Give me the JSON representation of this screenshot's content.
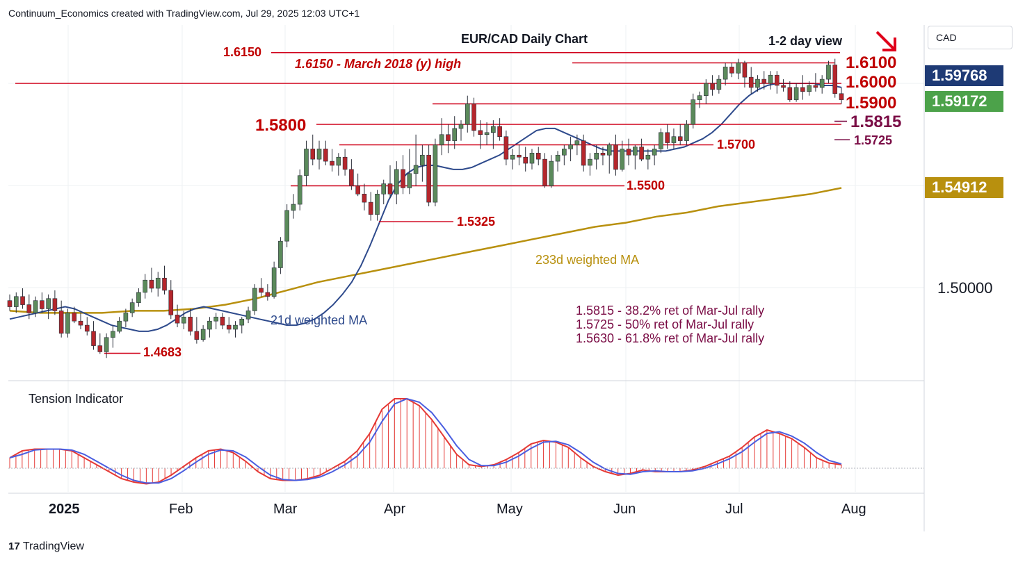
{
  "header": {
    "source_text": "Continuum_Economics created with TradingView.com, Jul 29, 2025 12:03 UTC+1"
  },
  "chart_title": "EUR/CAD Daily Chart",
  "view_label": "1-2 day view",
  "view_arrow_icon": "down-right-arrow-icon",
  "currency_label": "CAD",
  "price_boxes": [
    {
      "value": "1.59768",
      "color": "#1e3a75"
    },
    {
      "value": "1.59172",
      "color": "#4ca24a"
    },
    {
      "value": "1.54912",
      "color": "#b8900e"
    }
  ],
  "axis_label": "1.50000",
  "level_labels": {
    "l6150": "1.6150",
    "l6150_note": "1.6150 - March 2018 (y) high",
    "l6100": "1.6100",
    "l6000": "1.6000",
    "l5900": "1.5900",
    "l5815": "1.5815",
    "l5800": "1.5800",
    "l5725": "1.5725",
    "l5700": "1.5700",
    "l5500": "1.5500",
    "l5325": "1.5325",
    "l4683": "1.4683"
  },
  "ma_labels": {
    "ma233": "233d weighted MA",
    "ma21": "21d weighted MA"
  },
  "retracements": [
    "1.5815 - 38.2% ret of Mar-Jul rally",
    "1.5725 - 50% ret of Mar-Jul rally",
    "1.5630 - 61.8% ret of Mar-Jul rally"
  ],
  "indicator_title": "Tension Indicator",
  "months": [
    "2025",
    "Feb",
    "Mar",
    "Apr",
    "May",
    "Jun",
    "Jul",
    "Aug"
  ],
  "footer": {
    "logo_text": "TradingView"
  },
  "colors": {
    "up": "#5b8a5b",
    "down": "#b5262c",
    "level": "#d0021b",
    "ma21": "#2e4a8c",
    "ma233": "#b8900e",
    "tension": "#e53935",
    "tension_signal": "#4a5ee0"
  },
  "chart_data": {
    "type": "candlestick",
    "title": "EUR/CAD Daily Chart",
    "x_range": [
      "2024-12-18",
      "2025-07-29"
    ],
    "y_range": [
      1.45,
      1.625
    ],
    "x_ticks": [
      "2025",
      "Feb",
      "Mar",
      "Apr",
      "May",
      "Jun",
      "Jul",
      "Aug"
    ],
    "ohlc": [
      [
        1.494,
        1.497,
        1.489,
        1.491
      ],
      [
        1.491,
        1.498,
        1.488,
        1.496
      ],
      [
        1.496,
        1.5,
        1.49,
        1.492
      ],
      [
        1.492,
        1.497,
        1.485,
        1.488
      ],
      [
        1.488,
        1.496,
        1.486,
        1.494
      ],
      [
        1.494,
        1.498,
        1.488,
        1.49
      ],
      [
        1.49,
        1.497,
        1.485,
        1.495
      ],
      [
        1.495,
        1.499,
        1.487,
        1.489
      ],
      [
        1.489,
        1.494,
        1.476,
        1.478
      ],
      [
        1.478,
        1.49,
        1.476,
        1.488
      ],
      [
        1.488,
        1.491,
        1.483,
        1.484
      ],
      [
        1.484,
        1.488,
        1.48,
        1.482
      ],
      [
        1.482,
        1.486,
        1.477,
        1.479
      ],
      [
        1.479,
        1.484,
        1.47,
        1.472
      ],
      [
        1.472,
        1.478,
        1.468,
        1.469
      ],
      [
        1.469,
        1.478,
        1.466,
        1.476
      ],
      [
        1.476,
        1.482,
        1.471,
        1.479
      ],
      [
        1.479,
        1.486,
        1.478,
        1.484
      ],
      [
        1.484,
        1.49,
        1.481,
        1.488
      ],
      [
        1.488,
        1.495,
        1.486,
        1.493
      ],
      [
        1.493,
        1.5,
        1.491,
        1.498
      ],
      [
        1.498,
        1.507,
        1.495,
        1.504
      ],
      [
        1.504,
        1.51,
        1.498,
        1.5
      ],
      [
        1.5,
        1.508,
        1.496,
        1.505
      ],
      [
        1.505,
        1.511,
        1.497,
        1.499
      ],
      [
        1.499,
        1.504,
        1.485,
        1.487
      ],
      [
        1.487,
        1.492,
        1.481,
        1.483
      ],
      [
        1.483,
        1.489,
        1.48,
        1.486
      ],
      [
        1.486,
        1.49,
        1.477,
        1.479
      ],
      [
        1.479,
        1.486,
        1.473,
        1.475
      ],
      [
        1.475,
        1.482,
        1.474,
        1.48
      ],
      [
        1.48,
        1.486,
        1.476,
        1.484
      ],
      [
        1.484,
        1.488,
        1.48,
        1.486
      ],
      [
        1.486,
        1.488,
        1.48,
        1.482
      ],
      [
        1.482,
        1.486,
        1.478,
        1.48
      ],
      [
        1.48,
        1.484,
        1.476,
        1.482
      ],
      [
        1.482,
        1.486,
        1.478,
        1.485
      ],
      [
        1.485,
        1.491,
        1.483,
        1.489
      ],
      [
        1.489,
        1.502,
        1.487,
        1.5
      ],
      [
        1.5,
        1.505,
        1.496,
        1.498
      ],
      [
        1.498,
        1.502,
        1.494,
        1.496
      ],
      [
        1.496,
        1.513,
        1.495,
        1.51
      ],
      [
        1.51,
        1.525,
        1.507,
        1.523
      ],
      [
        1.523,
        1.541,
        1.52,
        1.538
      ],
      [
        1.538,
        1.546,
        1.534,
        1.541
      ],
      [
        1.541,
        1.558,
        1.538,
        1.555
      ],
      [
        1.555,
        1.572,
        1.55,
        1.568
      ],
      [
        1.568,
        1.575,
        1.56,
        1.563
      ],
      [
        1.563,
        1.572,
        1.558,
        1.568
      ],
      [
        1.568,
        1.572,
        1.56,
        1.562
      ],
      [
        1.562,
        1.568,
        1.557,
        1.56
      ],
      [
        1.56,
        1.566,
        1.555,
        1.564
      ],
      [
        1.564,
        1.568,
        1.555,
        1.558
      ],
      [
        1.558,
        1.563,
        1.548,
        1.55
      ],
      [
        1.55,
        1.556,
        1.545,
        1.546
      ],
      [
        1.546,
        1.551,
        1.538,
        1.542
      ],
      [
        1.542,
        1.547,
        1.533,
        1.536
      ],
      [
        1.536,
        1.548,
        1.533,
        1.546
      ],
      [
        1.546,
        1.553,
        1.541,
        1.551
      ],
      [
        1.551,
        1.56,
        1.544,
        1.546
      ],
      [
        1.546,
        1.562,
        1.541,
        1.558
      ],
      [
        1.558,
        1.565,
        1.546,
        1.549
      ],
      [
        1.549,
        1.568,
        1.546,
        1.556
      ],
      [
        1.556,
        1.575,
        1.55,
        1.56
      ],
      [
        1.56,
        1.57,
        1.552,
        1.565
      ],
      [
        1.565,
        1.57,
        1.54,
        1.542
      ],
      [
        1.542,
        1.573,
        1.54,
        1.57
      ],
      [
        1.57,
        1.583,
        1.565,
        1.575
      ],
      [
        1.575,
        1.58,
        1.566,
        1.572
      ],
      [
        1.572,
        1.584,
        1.568,
        1.578
      ],
      [
        1.578,
        1.582,
        1.572,
        1.58
      ],
      [
        1.58,
        1.594,
        1.576,
        1.59
      ],
      [
        1.59,
        1.593,
        1.574,
        1.577
      ],
      [
        1.577,
        1.582,
        1.568,
        1.575
      ],
      [
        1.575,
        1.581,
        1.57,
        1.576
      ],
      [
        1.576,
        1.582,
        1.568,
        1.579
      ],
      [
        1.579,
        1.583,
        1.572,
        1.574
      ],
      [
        1.574,
        1.577,
        1.56,
        1.563
      ],
      [
        1.563,
        1.568,
        1.558,
        1.565
      ],
      [
        1.565,
        1.57,
        1.56,
        1.564
      ],
      [
        1.564,
        1.569,
        1.557,
        1.561
      ],
      [
        1.561,
        1.568,
        1.558,
        1.566
      ],
      [
        1.566,
        1.569,
        1.56,
        1.563
      ],
      [
        1.563,
        1.566,
        1.549,
        1.55
      ],
      [
        1.55,
        1.565,
        1.549,
        1.562
      ],
      [
        1.562,
        1.567,
        1.557,
        1.565
      ],
      [
        1.565,
        1.57,
        1.56,
        1.568
      ],
      [
        1.568,
        1.574,
        1.562,
        1.57
      ],
      [
        1.57,
        1.575,
        1.565,
        1.572
      ],
      [
        1.572,
        1.575,
        1.557,
        1.56
      ],
      [
        1.56,
        1.566,
        1.555,
        1.563
      ],
      [
        1.563,
        1.57,
        1.558,
        1.566
      ],
      [
        1.566,
        1.569,
        1.56,
        1.565
      ],
      [
        1.565,
        1.571,
        1.556,
        1.57
      ],
      [
        1.57,
        1.575,
        1.555,
        1.558
      ],
      [
        1.558,
        1.572,
        1.557,
        1.568
      ],
      [
        1.568,
        1.573,
        1.56,
        1.565
      ],
      [
        1.565,
        1.57,
        1.558,
        1.569
      ],
      [
        1.569,
        1.573,
        1.562,
        1.563
      ],
      [
        1.563,
        1.568,
        1.558,
        1.565
      ],
      [
        1.565,
        1.57,
        1.56,
        1.568
      ],
      [
        1.568,
        1.578,
        1.566,
        1.576
      ],
      [
        1.576,
        1.58,
        1.568,
        1.571
      ],
      [
        1.571,
        1.578,
        1.568,
        1.574
      ],
      [
        1.574,
        1.58,
        1.57,
        1.572
      ],
      [
        1.572,
        1.582,
        1.57,
        1.58
      ],
      [
        1.58,
        1.595,
        1.578,
        1.592
      ],
      [
        1.592,
        1.596,
        1.588,
        1.594
      ],
      [
        1.594,
        1.602,
        1.59,
        1.6
      ],
      [
        1.6,
        1.604,
        1.594,
        1.597
      ],
      [
        1.597,
        1.604,
        1.595,
        1.602
      ],
      [
        1.602,
        1.61,
        1.599,
        1.608
      ],
      [
        1.608,
        1.61,
        1.603,
        1.605
      ],
      [
        1.605,
        1.612,
        1.602,
        1.61
      ],
      [
        1.61,
        1.611,
        1.598,
        1.603
      ],
      [
        1.603,
        1.608,
        1.595,
        1.598
      ],
      [
        1.598,
        1.604,
        1.596,
        1.602
      ],
      [
        1.602,
        1.606,
        1.597,
        1.6
      ],
      [
        1.6,
        1.606,
        1.597,
        1.604
      ],
      [
        1.604,
        1.606,
        1.595,
        1.599
      ],
      [
        1.599,
        1.602,
        1.596,
        1.598
      ],
      [
        1.598,
        1.601,
        1.591,
        1.592
      ],
      [
        1.592,
        1.6,
        1.591,
        1.598
      ],
      [
        1.598,
        1.604,
        1.592,
        1.596
      ],
      [
        1.596,
        1.601,
        1.594,
        1.599
      ],
      [
        1.599,
        1.605,
        1.596,
        1.598
      ],
      [
        1.598,
        1.604,
        1.595,
        1.602
      ],
      [
        1.602,
        1.611,
        1.6,
        1.609
      ],
      [
        1.609,
        1.612,
        1.593,
        1.595
      ],
      [
        1.595,
        1.598,
        1.59,
        1.592
      ]
    ],
    "series": [
      {
        "name": "21d weighted MA",
        "values": [
          1.485,
          1.486,
          1.487,
          1.488,
          1.489,
          1.49,
          1.491,
          1.49,
          1.488,
          1.486,
          1.484,
          1.482,
          1.481,
          1.48,
          1.479,
          1.479,
          1.48,
          1.482,
          1.485,
          1.488,
          1.49,
          1.491,
          1.49,
          1.489,
          1.488,
          1.487,
          1.486,
          1.485,
          1.484,
          1.483,
          1.482,
          1.482,
          1.483,
          1.485,
          1.488,
          1.492,
          1.497,
          1.503,
          1.511,
          1.521,
          1.532,
          1.543,
          1.551,
          1.556,
          1.559,
          1.56,
          1.56,
          1.559,
          1.558,
          1.558,
          1.559,
          1.561,
          1.563,
          1.565,
          1.568,
          1.571,
          1.574,
          1.577,
          1.578,
          1.578,
          1.576,
          1.574,
          1.572,
          1.57,
          1.568,
          1.567,
          1.567,
          1.567,
          1.567,
          1.567,
          1.567,
          1.567,
          1.568,
          1.569,
          1.571,
          1.573,
          1.576,
          1.58,
          1.585,
          1.59,
          1.594,
          1.597,
          1.599,
          1.6,
          1.6,
          1.6,
          1.6,
          1.6,
          1.599,
          1.599,
          1.598
        ]
      },
      {
        "name": "233d weighted MA",
        "values": [
          1.489,
          1.488,
          1.488,
          1.488,
          1.489,
          1.489,
          1.49,
          1.492,
          1.495,
          1.499,
          1.503,
          1.506,
          1.509,
          1.512,
          1.515,
          1.518,
          1.521,
          1.524,
          1.527,
          1.53,
          1.532,
          1.535,
          1.537,
          1.54,
          1.542,
          1.544,
          1.546,
          1.549
        ]
      }
    ],
    "levels": [
      1.615,
      1.61,
      1.6,
      1.59,
      1.5815,
      1.58,
      1.5725,
      1.57,
      1.55,
      1.5325,
      1.4683
    ],
    "tension_indicator": {
      "name": "Tension Indicator",
      "values": [
        0.3,
        0.5,
        0.55,
        0.55,
        0.55,
        0.5,
        0.3,
        0.1,
        -0.1,
        -0.3,
        -0.4,
        -0.45,
        -0.4,
        -0.2,
        0.05,
        0.3,
        0.5,
        0.55,
        0.45,
        0.2,
        -0.1,
        -0.3,
        -0.35,
        -0.35,
        -0.3,
        -0.2,
        0.0,
        0.2,
        0.5,
        1.0,
        1.7,
        2.0,
        2.0,
        1.8,
        1.4,
        0.9,
        0.4,
        0.1,
        0.05,
        0.1,
        0.25,
        0.45,
        0.7,
        0.8,
        0.75,
        0.6,
        0.3,
        0.05,
        -0.1,
        -0.2,
        -0.15,
        -0.05,
        -0.1,
        -0.1,
        -0.1,
        -0.05,
        0.05,
        0.2,
        0.35,
        0.6,
        0.9,
        1.1,
        1.0,
        0.85,
        0.6,
        0.3,
        0.15,
        0.1
      ]
    }
  }
}
